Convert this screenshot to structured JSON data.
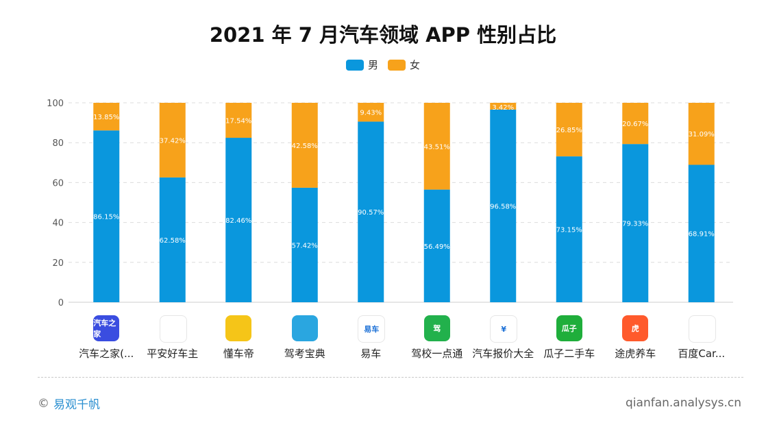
{
  "title": "2021 年 7 月汽车领域 APP 性别占比",
  "legend": {
    "male": "男",
    "female": "女"
  },
  "colors": {
    "male": "#0a97dd",
    "female": "#f7a21b",
    "grid": "#dcdcdc",
    "axis": "#cccccc"
  },
  "chart_data": {
    "type": "bar",
    "stacked": true,
    "categories": [
      "汽车之家(...",
      "平安好车主",
      "懂车帝",
      "驾考宝典",
      "易车",
      "驾校一点通",
      "汽车报价大全",
      "瓜子二手车",
      "途虎养车",
      "百度Car..."
    ],
    "series": [
      {
        "name": "男",
        "values": [
          86.15,
          62.58,
          82.46,
          57.42,
          90.57,
          56.49,
          96.58,
          73.15,
          79.33,
          68.91
        ],
        "labels": [
          "86.15%",
          "62.58%",
          "82.46%",
          "57.42%",
          "90.57%",
          "56.49%",
          "96.58%",
          "73.15%",
          "79.33%",
          "68.91%"
        ]
      },
      {
        "name": "女",
        "values": [
          13.85,
          37.42,
          17.54,
          42.58,
          9.43,
          43.51,
          3.42,
          26.85,
          20.67,
          31.09
        ],
        "labels": [
          "13.85%",
          "37.42%",
          "17.54%",
          "42.58%",
          "9.43%",
          "43.51%",
          "3.42%",
          "26.85%",
          "20.67%",
          "31.09%"
        ]
      }
    ],
    "ylim": [
      0,
      100
    ],
    "yticks": [
      "0",
      "20",
      "40",
      "60",
      "80",
      "100"
    ],
    "grid": true,
    "legend_position": "top-center"
  },
  "app_icons": [
    {
      "name": "autohome-icon",
      "text": "汽车之家",
      "bg": "#3a4de0"
    },
    {
      "name": "pingan-car-owner-icon",
      "text": "",
      "bg": "#ffffff"
    },
    {
      "name": "dongchedi-icon",
      "text": "",
      "bg": "#f5c518"
    },
    {
      "name": "jiakao-baodian-icon",
      "text": "",
      "bg": "#2aa6e0"
    },
    {
      "name": "yiche-icon",
      "text": "易车",
      "bg": "#ffffff"
    },
    {
      "name": "jiaxiao-icon",
      "text": "驾",
      "bg": "#22b14c"
    },
    {
      "name": "car-price-icon",
      "text": "¥",
      "bg": "#ffffff"
    },
    {
      "name": "guazi-icon",
      "text": "瓜子",
      "bg": "#1fae3b"
    },
    {
      "name": "tuhu-icon",
      "text": "虎",
      "bg": "#ff5a2c"
    },
    {
      "name": "baidu-car-icon",
      "text": "",
      "bg": "#ffffff"
    }
  ],
  "footer": {
    "copyright_mark": "©",
    "brand": "易观千帆",
    "url": "qianfan.analysys.cn"
  }
}
